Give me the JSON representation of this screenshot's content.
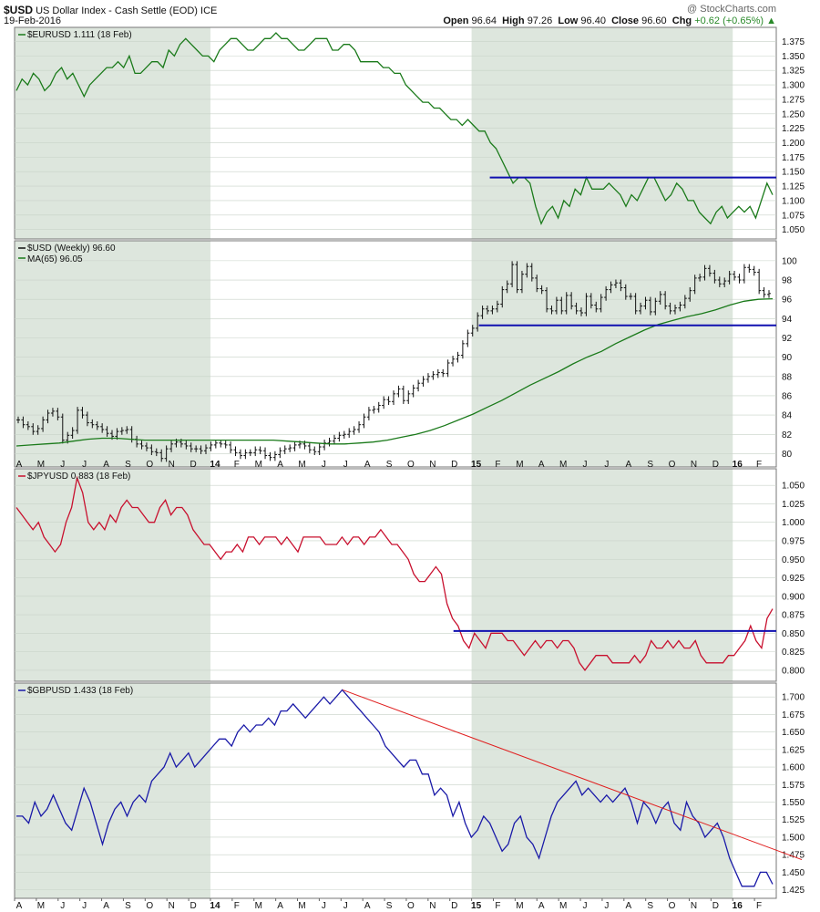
{
  "header": {
    "symbol": "$USD",
    "name": "US Dollar Index - Cash Settle (EOD)",
    "exchange": "ICE",
    "date": "19-Feb-2016",
    "brand": "@ StockCharts.com",
    "open_label": "Open",
    "open": "96.64",
    "high_label": "High",
    "high": "97.26",
    "low_label": "Low",
    "low": "96.40",
    "close_label": "Close",
    "close": "96.60",
    "chg_label": "Chg",
    "chg": "+0.62 (+0.65%)"
  },
  "x_axis": {
    "labels": [
      "A",
      "M",
      "J",
      "J",
      "A",
      "S",
      "O",
      "N",
      "D",
      "14",
      "F",
      "M",
      "A",
      "M",
      "J",
      "J",
      "A",
      "S",
      "O",
      "N",
      "D",
      "15",
      "F",
      "M",
      "A",
      "M",
      "J",
      "J",
      "A",
      "S",
      "O",
      "N",
      "D",
      "16",
      "F"
    ],
    "year_labels": [
      "14",
      "15",
      "16"
    ]
  },
  "colors": {
    "eurusd": "#1a7a1a",
    "usd_bars": "#111111",
    "ma": "#1a7a1a",
    "jpyusd": "#c8102e",
    "gbpusd": "#1a1aa8",
    "support": "#1010b0",
    "trend": "#e02020",
    "panel_bg": "#dde6dd",
    "band_alt": "#e6ede6"
  },
  "chart_data": [
    {
      "type": "line",
      "label": "$EURUSD 1.111 (18 Feb)",
      "yticks": [
        "1.375",
        "1.350",
        "1.325",
        "1.300",
        "1.275",
        "1.250",
        "1.225",
        "1.200",
        "1.175",
        "1.150",
        "1.125",
        "1.100",
        "1.075",
        "1.050"
      ],
      "ylim": [
        1.04,
        1.39
      ],
      "series": [
        {
          "name": "$EURUSD",
          "x_range": [
            "Apr 2013",
            "Feb 2016"
          ],
          "values": [
            1.29,
            1.31,
            1.3,
            1.32,
            1.31,
            1.29,
            1.3,
            1.32,
            1.33,
            1.31,
            1.32,
            1.3,
            1.28,
            1.3,
            1.31,
            1.32,
            1.33,
            1.33,
            1.34,
            1.33,
            1.35,
            1.32,
            1.32,
            1.33,
            1.34,
            1.34,
            1.33,
            1.36,
            1.35,
            1.37,
            1.38,
            1.37,
            1.36,
            1.35,
            1.35,
            1.34,
            1.36,
            1.37,
            1.38,
            1.38,
            1.37,
            1.36,
            1.36,
            1.37,
            1.38,
            1.38,
            1.39,
            1.38,
            1.38,
            1.37,
            1.36,
            1.36,
            1.37,
            1.38,
            1.38,
            1.38,
            1.36,
            1.36,
            1.37,
            1.37,
            1.36,
            1.34,
            1.34,
            1.34,
            1.34,
            1.33,
            1.33,
            1.32,
            1.32,
            1.3,
            1.29,
            1.28,
            1.27,
            1.27,
            1.26,
            1.26,
            1.25,
            1.24,
            1.24,
            1.23,
            1.24,
            1.23,
            1.22,
            1.22,
            1.2,
            1.19,
            1.17,
            1.15,
            1.13,
            1.14,
            1.14,
            1.13,
            1.09,
            1.06,
            1.08,
            1.09,
            1.07,
            1.1,
            1.09,
            1.12,
            1.11,
            1.14,
            1.12,
            1.12,
            1.12,
            1.13,
            1.12,
            1.11,
            1.09,
            1.11,
            1.1,
            1.12,
            1.14,
            1.14,
            1.12,
            1.1,
            1.11,
            1.13,
            1.12,
            1.1,
            1.1,
            1.08,
            1.07,
            1.06,
            1.08,
            1.09,
            1.07,
            1.08,
            1.09,
            1.08,
            1.09,
            1.07,
            1.1,
            1.13,
            1.11
          ]
        }
      ],
      "support": {
        "value": 1.14,
        "from": "Jan 2015",
        "to": "Feb 2016"
      }
    },
    {
      "type": "bar",
      "label": "$USD (Weekly) 96.60",
      "ma_label": "MA(65) 96.05",
      "yticks": [
        "100",
        "98",
        "96",
        "94",
        "92",
        "90",
        "88",
        "86",
        "84",
        "82",
        "80"
      ],
      "ylim": [
        79,
        101.5
      ],
      "series": [
        {
          "name": "$USD (Weekly)",
          "x_range": [
            "Apr 2013",
            "Feb 2016"
          ],
          "values": [
            83.5,
            83.0,
            82.8,
            82.3,
            82.6,
            83.5,
            84.2,
            84.4,
            83.8,
            81.4,
            81.9,
            82.4,
            84.5,
            84.0,
            83.2,
            83.0,
            82.8,
            82.5,
            82.1,
            81.8,
            82.3,
            82.4,
            82.5,
            81.5,
            81.0,
            80.8,
            80.6,
            80.2,
            80.1,
            79.5,
            80.5,
            81.0,
            81.2,
            81.0,
            80.8,
            80.5,
            80.5,
            80.3,
            80.6,
            80.9,
            81.1,
            81.0,
            80.9,
            80.4,
            80.1,
            79.8,
            80.1,
            80.1,
            80.4,
            80.3,
            79.8,
            79.6,
            79.9,
            80.3,
            80.5,
            80.6,
            80.9,
            81.0,
            80.8,
            80.4,
            80.2,
            80.7,
            81.1,
            81.3,
            81.6,
            81.9,
            82.0,
            82.3,
            82.5,
            83.0,
            83.8,
            84.5,
            84.6,
            85.0,
            85.6,
            85.4,
            86.2,
            86.7,
            85.5,
            86.2,
            86.8,
            87.3,
            87.7,
            88.0,
            88.2,
            88.4,
            88.3,
            89.4,
            89.8,
            90.2,
            91.4,
            92.5,
            93.0,
            94.3,
            95.0,
            94.8,
            95.0,
            95.5,
            97.0,
            97.6,
            99.6,
            97.0,
            98.6,
            99.4,
            98.2,
            97.1,
            96.9,
            95.0,
            94.8,
            95.9,
            94.8,
            96.4,
            95.3,
            94.8,
            94.6,
            96.3,
            95.4,
            95.0,
            96.2,
            97.0,
            97.5,
            97.7,
            97.2,
            96.3,
            96.3,
            94.8,
            95.3,
            95.9,
            94.7,
            95.8,
            96.5,
            95.3,
            94.8,
            95.1,
            95.4,
            96.1,
            96.9,
            98.2,
            98.3,
            99.2,
            98.7,
            98.0,
            97.6,
            97.9,
            98.6,
            98.3,
            98.0,
            99.3,
            99.1,
            98.8,
            96.9,
            96.5,
            96.6
          ]
        },
        {
          "name": "MA(65)",
          "values": [
            80.8,
            80.9,
            81.0,
            81.1,
            81.3,
            81.5,
            81.6,
            81.6,
            81.5,
            81.4,
            81.4,
            81.4,
            81.4,
            81.4,
            81.4,
            81.4,
            81.4,
            81.4,
            81.4,
            81.3,
            81.2,
            81.1,
            81.0,
            81.0,
            81.1,
            81.2,
            81.4,
            81.7,
            82.0,
            82.4,
            82.9,
            83.5,
            84.1,
            84.8,
            85.5,
            86.3,
            87.1,
            87.8,
            88.5,
            89.3,
            90.0,
            90.6,
            91.4,
            92.1,
            92.8,
            93.4,
            93.8,
            94.2,
            94.5,
            94.9,
            95.4,
            95.8,
            96.0,
            96.05
          ]
        }
      ],
      "support": {
        "value": 93.3,
        "from": "Jan 2015",
        "to": "Feb 2016"
      }
    },
    {
      "type": "line",
      "label": "$JPYUSD 0.883 (18 Feb)",
      "yticks": [
        "1.050",
        "1.025",
        "1.000",
        "0.975",
        "0.950",
        "0.925",
        "0.900",
        "0.875",
        "0.850",
        "0.825",
        "0.800"
      ],
      "ylim": [
        0.79,
        1.065
      ],
      "series": [
        {
          "name": "$JPYUSD",
          "x_range": [
            "Apr 2013",
            "Feb 2016"
          ],
          "values": [
            1.02,
            1.01,
            1.0,
            0.99,
            1.0,
            0.98,
            0.97,
            0.96,
            0.97,
            1.0,
            1.02,
            1.06,
            1.04,
            1.0,
            0.99,
            1.0,
            0.99,
            1.01,
            1.0,
            1.02,
            1.03,
            1.02,
            1.02,
            1.01,
            1.0,
            1.0,
            1.02,
            1.03,
            1.01,
            1.02,
            1.02,
            1.01,
            0.99,
            0.98,
            0.97,
            0.97,
            0.96,
            0.95,
            0.96,
            0.96,
            0.97,
            0.96,
            0.98,
            0.98,
            0.97,
            0.98,
            0.98,
            0.98,
            0.97,
            0.98,
            0.97,
            0.96,
            0.98,
            0.98,
            0.98,
            0.98,
            0.97,
            0.97,
            0.97,
            0.98,
            0.97,
            0.98,
            0.98,
            0.97,
            0.98,
            0.98,
            0.99,
            0.98,
            0.97,
            0.97,
            0.96,
            0.95,
            0.93,
            0.92,
            0.92,
            0.93,
            0.94,
            0.93,
            0.89,
            0.87,
            0.86,
            0.84,
            0.83,
            0.85,
            0.84,
            0.83,
            0.85,
            0.85,
            0.85,
            0.84,
            0.84,
            0.83,
            0.82,
            0.83,
            0.84,
            0.83,
            0.84,
            0.84,
            0.83,
            0.84,
            0.84,
            0.83,
            0.81,
            0.8,
            0.81,
            0.82,
            0.82,
            0.82,
            0.81,
            0.81,
            0.81,
            0.81,
            0.82,
            0.81,
            0.82,
            0.84,
            0.83,
            0.83,
            0.84,
            0.83,
            0.84,
            0.83,
            0.83,
            0.84,
            0.82,
            0.81,
            0.81,
            0.81,
            0.81,
            0.82,
            0.82,
            0.83,
            0.84,
            0.86,
            0.84,
            0.83,
            0.87,
            0.883
          ]
        }
      ],
      "support": {
        "value": 0.853,
        "from": "Nov 2014",
        "to": "Feb 2016"
      }
    },
    {
      "type": "line",
      "label": "$GBPUSD 1.433 (18 Feb)",
      "yticks": [
        "1.700",
        "1.675",
        "1.650",
        "1.625",
        "1.600",
        "1.575",
        "1.550",
        "1.525",
        "1.500",
        "1.475",
        "1.450",
        "1.425"
      ],
      "ylim": [
        1.418,
        1.712
      ],
      "series": [
        {
          "name": "$GBPUSD",
          "x_range": [
            "Apr 2013",
            "Feb 2016"
          ],
          "values": [
            1.53,
            1.53,
            1.52,
            1.55,
            1.53,
            1.54,
            1.56,
            1.54,
            1.52,
            1.51,
            1.54,
            1.57,
            1.55,
            1.52,
            1.49,
            1.52,
            1.54,
            1.55,
            1.53,
            1.55,
            1.56,
            1.55,
            1.58,
            1.59,
            1.6,
            1.62,
            1.6,
            1.61,
            1.62,
            1.6,
            1.61,
            1.62,
            1.63,
            1.64,
            1.64,
            1.63,
            1.65,
            1.66,
            1.65,
            1.66,
            1.66,
            1.67,
            1.66,
            1.68,
            1.68,
            1.69,
            1.68,
            1.67,
            1.68,
            1.69,
            1.7,
            1.69,
            1.7,
            1.71,
            1.7,
            1.69,
            1.68,
            1.67,
            1.66,
            1.65,
            1.63,
            1.62,
            1.61,
            1.6,
            1.61,
            1.61,
            1.59,
            1.59,
            1.56,
            1.57,
            1.56,
            1.53,
            1.55,
            1.52,
            1.5,
            1.51,
            1.53,
            1.52,
            1.5,
            1.48,
            1.49,
            1.52,
            1.53,
            1.5,
            1.49,
            1.47,
            1.5,
            1.53,
            1.55,
            1.56,
            1.57,
            1.58,
            1.56,
            1.57,
            1.56,
            1.55,
            1.56,
            1.55,
            1.56,
            1.57,
            1.55,
            1.52,
            1.55,
            1.54,
            1.52,
            1.54,
            1.55,
            1.52,
            1.51,
            1.55,
            1.53,
            1.52,
            1.5,
            1.51,
            1.52,
            1.5,
            1.47,
            1.45,
            1.43,
            1.43,
            1.43,
            1.45,
            1.45,
            1.433
          ]
        }
      ],
      "trendline": {
        "from": {
          "x": "Jul 2014",
          "y": 1.71
        },
        "to": {
          "x": "Feb 2016",
          "y": 1.478
        }
      }
    }
  ]
}
